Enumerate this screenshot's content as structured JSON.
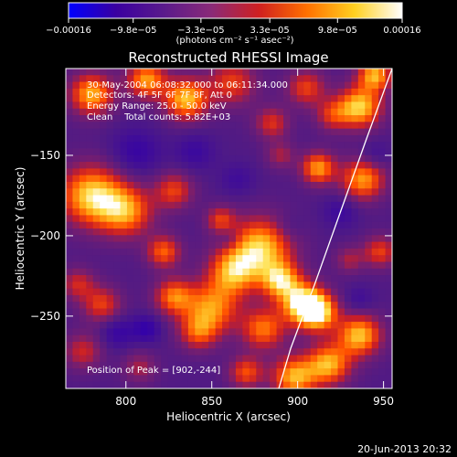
{
  "chart_data": {
    "type": "heatmap",
    "title": "Reconstructed RHESSI Image",
    "xlabel": "Heliocentric X (arcsec)",
    "ylabel": "Heliocentric Y (arcsec)",
    "xlim": [
      765,
      955
    ],
    "ylim": [
      -295,
      -96
    ],
    "x_ticks": [
      800,
      850,
      900,
      950
    ],
    "x_tick_labels": [
      "800",
      "850",
      "900",
      "950"
    ],
    "y_ticks": [
      -150,
      -200,
      -250
    ],
    "y_tick_labels": [
      "−150",
      "−200",
      "−250"
    ],
    "colorbar": {
      "range": [
        -0.00016,
        0.00016
      ],
      "ticks": [
        -0.00016,
        -9.8e-05,
        -3.3e-05,
        3.3e-05,
        9.8e-05,
        0.00016
      ],
      "tick_labels": [
        "−0.00016",
        "−9.8e−05",
        "−3.3e−05",
        "3.3e−05",
        "9.8e−05",
        "0.00016"
      ],
      "units_text": "(photons cm⁻² s⁻¹ asec⁻²)",
      "colors": [
        "#0000ff",
        "#3a00a0",
        "#5a1a8c",
        "#8a2a78",
        "#d02020",
        "#ff7000",
        "#ffd020",
        "#ffffff"
      ]
    },
    "header_lines": [
      "30-May-2004 06:08:32.000 to 06:11:34.000",
      "Detectors: 4F 5F 6F 7F 8F, Att 0",
      "Energy Range: 25.0 - 50.0 keV",
      "Clean    Total counts: 5.82E+03"
    ],
    "annotation": "Position of Peak = [902,-244]",
    "peak": [
      902,
      -244
    ],
    "limb_curve": [
      [
        955,
        -96
      ],
      [
        940,
        -140
      ],
      [
        925,
        -185
      ],
      [
        910,
        -230
      ],
      [
        896,
        -270
      ],
      [
        889,
        -295
      ]
    ],
    "blobs": [
      {
        "x": 780,
        "y": -112,
        "a": 0.85,
        "s": 9
      },
      {
        "x": 812,
        "y": -103,
        "a": 0.8,
        "s": 8
      },
      {
        "x": 835,
        "y": -115,
        "a": 0.9,
        "s": 9
      },
      {
        "x": 862,
        "y": -105,
        "a": 0.55,
        "s": 10
      },
      {
        "x": 885,
        "y": -130,
        "a": 0.5,
        "s": 7
      },
      {
        "x": 905,
        "y": -108,
        "a": 0.55,
        "s": 8
      },
      {
        "x": 920,
        "y": -125,
        "a": 0.45,
        "s": 7
      },
      {
        "x": 936,
        "y": -120,
        "a": 0.95,
        "s": 9
      },
      {
        "x": 945,
        "y": -100,
        "a": 0.85,
        "s": 7
      },
      {
        "x": 890,
        "y": -150,
        "a": 0.35,
        "s": 6
      },
      {
        "x": 912,
        "y": -158,
        "a": 0.8,
        "s": 7
      },
      {
        "x": 938,
        "y": -165,
        "a": 0.8,
        "s": 9
      },
      {
        "x": 780,
        "y": -175,
        "a": 0.95,
        "s": 13
      },
      {
        "x": 800,
        "y": -185,
        "a": 0.75,
        "s": 11
      },
      {
        "x": 828,
        "y": -172,
        "a": 0.55,
        "s": 8
      },
      {
        "x": 822,
        "y": -210,
        "a": 0.65,
        "s": 7
      },
      {
        "x": 855,
        "y": -190,
        "a": 0.5,
        "s": 6
      },
      {
        "x": 878,
        "y": -208,
        "a": 0.95,
        "s": 13
      },
      {
        "x": 862,
        "y": -223,
        "a": 0.75,
        "s": 10
      },
      {
        "x": 890,
        "y": -228,
        "a": 0.8,
        "s": 8
      },
      {
        "x": 903,
        "y": -242,
        "a": 1.0,
        "s": 9
      },
      {
        "x": 912,
        "y": -248,
        "a": 0.9,
        "s": 8
      },
      {
        "x": 880,
        "y": -258,
        "a": 0.7,
        "s": 9
      },
      {
        "x": 850,
        "y": -245,
        "a": 0.75,
        "s": 11
      },
      {
        "x": 828,
        "y": -238,
        "a": 0.7,
        "s": 8
      },
      {
        "x": 842,
        "y": -260,
        "a": 0.55,
        "s": 8
      },
      {
        "x": 786,
        "y": -243,
        "a": 0.55,
        "s": 8
      },
      {
        "x": 772,
        "y": -230,
        "a": 0.45,
        "s": 7
      },
      {
        "x": 775,
        "y": -272,
        "a": 0.45,
        "s": 8
      },
      {
        "x": 808,
        "y": -282,
        "a": 0.35,
        "s": 7
      },
      {
        "x": 870,
        "y": -285,
        "a": 0.6,
        "s": 7
      },
      {
        "x": 898,
        "y": -288,
        "a": 0.85,
        "s": 9
      },
      {
        "x": 918,
        "y": -280,
        "a": 0.85,
        "s": 9
      },
      {
        "x": 936,
        "y": -262,
        "a": 0.9,
        "s": 9
      },
      {
        "x": 948,
        "y": -210,
        "a": 0.55,
        "s": 7
      },
      {
        "x": 930,
        "y": -215,
        "a": 0.35,
        "s": 6
      },
      {
        "x": 806,
        "y": -148,
        "a": -0.3,
        "s": 10
      },
      {
        "x": 840,
        "y": -148,
        "a": -0.25,
        "s": 8
      },
      {
        "x": 865,
        "y": -165,
        "a": -0.2,
        "s": 7
      },
      {
        "x": 795,
        "y": -260,
        "a": -0.3,
        "s": 7
      },
      {
        "x": 812,
        "y": -258,
        "a": -0.35,
        "s": 6
      },
      {
        "x": 860,
        "y": -202,
        "a": -0.2,
        "s": 5
      },
      {
        "x": 895,
        "y": -195,
        "a": -0.15,
        "s": 6
      },
      {
        "x": 925,
        "y": -185,
        "a": -0.25,
        "s": 7
      },
      {
        "x": 945,
        "y": -150,
        "a": -0.2,
        "s": 6
      },
      {
        "x": 936,
        "y": -240,
        "a": -0.2,
        "s": 6
      }
    ]
  },
  "footer": {
    "date": "20-Jun-2013 20:32"
  }
}
